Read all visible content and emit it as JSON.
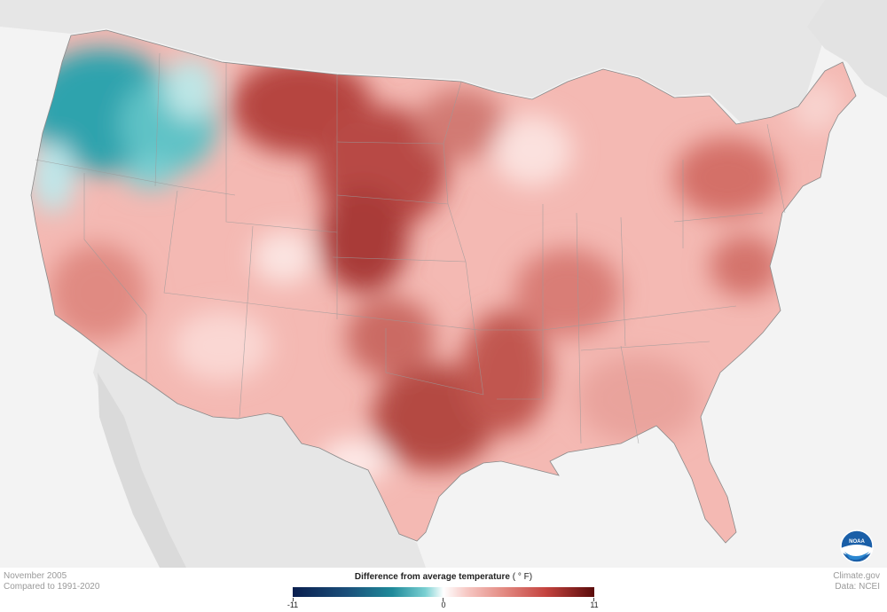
{
  "caption": {
    "period": "November 2005",
    "baseline": "Compared to 1991-2020"
  },
  "credits": {
    "source": "Climate.gov",
    "data": "Data: NCEI"
  },
  "legend": {
    "title": "Difference from average temperature",
    "unit": "( ° F)",
    "min": "-11",
    "mid": "0",
    "max": "11",
    "colors": {
      "cold_extreme": "#0a1f4f",
      "cold": "#1f8a9a",
      "neutral": "#ffffff",
      "warm": "#e38a82",
      "warm_extreme": "#5a0b0b"
    }
  },
  "logo": {
    "icon": "noaa-logo",
    "text": "NOAA"
  }
}
